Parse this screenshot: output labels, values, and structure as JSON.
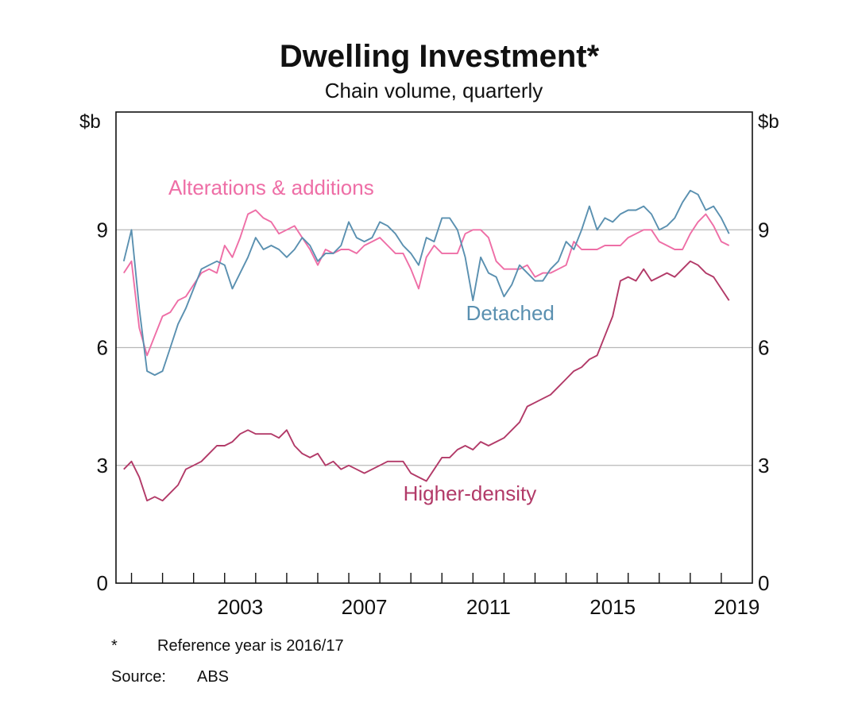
{
  "chart_data": {
    "type": "line",
    "title": "Dwelling Investment*",
    "subtitle": "Chain volume, quarterly",
    "y_unit_left": "$b",
    "y_unit_right": "$b",
    "ylim": [
      0,
      12
    ],
    "yticks": [
      0,
      3,
      6,
      9
    ],
    "xlim": [
      1999.5,
      2020.0
    ],
    "x_tick_labels": [
      {
        "x": 2003,
        "label": "2003"
      },
      {
        "x": 2007,
        "label": "2007"
      },
      {
        "x": 2011,
        "label": "2011"
      },
      {
        "x": 2015,
        "label": "2015"
      },
      {
        "x": 2019,
        "label": "2019"
      }
    ],
    "year_tick_marks": [
      2000,
      2001,
      2002,
      2003,
      2004,
      2005,
      2006,
      2007,
      2008,
      2009,
      2010,
      2011,
      2012,
      2013,
      2014,
      2015,
      2016,
      2017,
      2018,
      2019,
      2020
    ],
    "x": [
      1999.75,
      2000.0,
      2000.25,
      2000.5,
      2000.75,
      2001.0,
      2001.25,
      2001.5,
      2001.75,
      2002.0,
      2002.25,
      2002.5,
      2002.75,
      2003.0,
      2003.25,
      2003.5,
      2003.75,
      2004.0,
      2004.25,
      2004.5,
      2004.75,
      2005.0,
      2005.25,
      2005.5,
      2005.75,
      2006.0,
      2006.25,
      2006.5,
      2006.75,
      2007.0,
      2007.25,
      2007.5,
      2007.75,
      2008.0,
      2008.25,
      2008.5,
      2008.75,
      2009.0,
      2009.25,
      2009.5,
      2009.75,
      2010.0,
      2010.25,
      2010.5,
      2010.75,
      2011.0,
      2011.25,
      2011.5,
      2011.75,
      2012.0,
      2012.25,
      2012.5,
      2012.75,
      2013.0,
      2013.25,
      2013.5,
      2013.75,
      2014.0,
      2014.25,
      2014.5,
      2014.75,
      2015.0,
      2015.25,
      2015.5,
      2015.75,
      2016.0,
      2016.25,
      2016.5,
      2016.75,
      2017.0,
      2017.25,
      2017.5,
      2017.75,
      2018.0,
      2018.25,
      2018.5,
      2018.75,
      2019.0,
      2019.25
    ],
    "series": [
      {
        "name": "Alterations & additions",
        "color": "#ee6ea6",
        "label_x": 2004.5,
        "label_y": 9.9,
        "values": [
          7.9,
          8.2,
          6.5,
          5.8,
          6.3,
          6.8,
          6.9,
          7.2,
          7.3,
          7.6,
          7.9,
          8.0,
          7.9,
          8.6,
          8.3,
          8.8,
          9.4,
          9.5,
          9.3,
          9.2,
          8.9,
          9.0,
          9.1,
          8.8,
          8.5,
          8.1,
          8.5,
          8.4,
          8.5,
          8.5,
          8.4,
          8.6,
          8.7,
          8.8,
          8.6,
          8.4,
          8.4,
          8.0,
          7.5,
          8.3,
          8.6,
          8.4,
          8.4,
          8.4,
          8.9,
          9.0,
          9.0,
          8.8,
          8.2,
          8.0,
          8.0,
          8.0,
          8.1,
          7.8,
          7.9,
          7.9,
          8.0,
          8.1,
          8.7,
          8.5,
          8.5,
          8.5,
          8.6,
          8.6,
          8.6,
          8.8,
          8.9,
          9.0,
          9.0,
          8.7,
          8.6,
          8.5,
          8.5,
          8.9,
          9.2,
          9.4,
          9.1,
          8.7,
          8.6
        ]
      },
      {
        "name": "Detached",
        "color": "#5a90b0",
        "label_x": 2012.2,
        "label_y": 6.7,
        "values": [
          8.2,
          9.0,
          7.0,
          5.4,
          5.3,
          5.4,
          6.0,
          6.6,
          7.0,
          7.5,
          8.0,
          8.1,
          8.2,
          8.1,
          7.5,
          7.9,
          8.3,
          8.8,
          8.5,
          8.6,
          8.5,
          8.3,
          8.5,
          8.8,
          8.6,
          8.2,
          8.4,
          8.4,
          8.6,
          9.2,
          8.8,
          8.7,
          8.8,
          9.2,
          9.1,
          8.9,
          8.6,
          8.4,
          8.1,
          8.8,
          8.7,
          9.3,
          9.3,
          9.0,
          8.3,
          7.2,
          8.3,
          7.9,
          7.8,
          7.3,
          7.6,
          8.1,
          7.9,
          7.7,
          7.7,
          8.0,
          8.2,
          8.7,
          8.5,
          9.0,
          9.6,
          9.0,
          9.3,
          9.2,
          9.4,
          9.5,
          9.5,
          9.6,
          9.4,
          9.0,
          9.1,
          9.3,
          9.7,
          10.0,
          9.9,
          9.5,
          9.6,
          9.3,
          8.9
        ]
      },
      {
        "name": "Higher-density",
        "color": "#b23a68",
        "label_x": 2010.9,
        "label_y": 2.1,
        "values": [
          2.9,
          3.1,
          2.7,
          2.1,
          2.2,
          2.1,
          2.3,
          2.5,
          2.9,
          3.0,
          3.1,
          3.3,
          3.5,
          3.5,
          3.6,
          3.8,
          3.9,
          3.8,
          3.8,
          3.8,
          3.7,
          3.9,
          3.5,
          3.3,
          3.2,
          3.3,
          3.0,
          3.1,
          2.9,
          3.0,
          2.9,
          2.8,
          2.9,
          3.0,
          3.1,
          3.1,
          3.1,
          2.8,
          2.7,
          2.6,
          2.9,
          3.2,
          3.2,
          3.4,
          3.5,
          3.4,
          3.6,
          3.5,
          3.6,
          3.7,
          3.9,
          4.1,
          4.5,
          4.6,
          4.7,
          4.8,
          5.0,
          5.2,
          5.4,
          5.5,
          5.7,
          5.8,
          6.3,
          6.8,
          7.7,
          7.8,
          7.7,
          8.0,
          7.7,
          7.8,
          7.9,
          7.8,
          8.0,
          8.2,
          8.1,
          7.9,
          7.8,
          7.5,
          7.2
        ]
      }
    ],
    "footnote_marker": "*",
    "footnote_text": "Reference year is 2016/17",
    "source_label": "Source:",
    "source_text": "ABS"
  }
}
